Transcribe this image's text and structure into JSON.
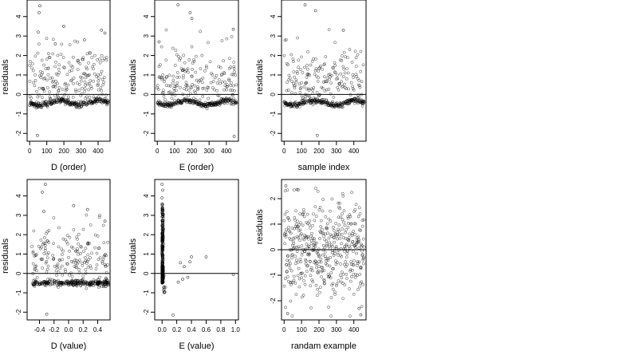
{
  "chart_data": [
    {
      "type": "scatter",
      "xlabel": "D (order)",
      "ylabel": "residuals",
      "xlim": [
        -15,
        470
      ],
      "ylim": [
        -2.4,
        4.85
      ],
      "xticks": [
        0,
        100,
        200,
        300,
        400
      ],
      "yticks": [
        -2,
        -1,
        0,
        1,
        2,
        3,
        4
      ],
      "hline": 0,
      "pattern": "order",
      "points": [
        {
          "x": 0,
          "y": -0.55
        },
        {
          "x": 60,
          "y": 4.55
        },
        {
          "x": 55,
          "y": 4.2
        },
        {
          "x": 50,
          "y": 3.2
        },
        {
          "x": 45,
          "y": -2.1
        },
        {
          "x": 200,
          "y": 3.5
        },
        {
          "x": 420,
          "y": 3.3
        },
        {
          "x": 440,
          "y": 3.15
        },
        {
          "x": 150,
          "y": 2.6
        },
        {
          "x": 320,
          "y": 2.8
        }
      ]
    },
    {
      "type": "scatter",
      "xlabel": "E (order)",
      "ylabel": "residuals",
      "xlim": [
        -15,
        470
      ],
      "ylim": [
        -2.4,
        4.85
      ],
      "xticks": [
        0,
        100,
        200,
        300,
        400
      ],
      "yticks": [
        -2,
        -1,
        0,
        1,
        2,
        3,
        4
      ],
      "hline": 0,
      "pattern": "order",
      "points": [
        {
          "x": 120,
          "y": 4.6
        },
        {
          "x": 190,
          "y": 4.2
        },
        {
          "x": 200,
          "y": 3.9
        },
        {
          "x": 440,
          "y": 3.35
        },
        {
          "x": 445,
          "y": -2.15
        },
        {
          "x": 10,
          "y": 2.7
        }
      ]
    },
    {
      "type": "scatter",
      "xlabel": "sample index",
      "ylabel": "residuals",
      "xlim": [
        -15,
        470
      ],
      "ylim": [
        -2.4,
        4.85
      ],
      "xticks": [
        0,
        100,
        200,
        300,
        400
      ],
      "yticks": [
        -2,
        -1,
        0,
        1,
        2,
        3,
        4
      ],
      "hline": 0,
      "pattern": "order",
      "points": [
        {
          "x": 120,
          "y": 4.6
        },
        {
          "x": 180,
          "y": 4.3
        },
        {
          "x": 190,
          "y": -2.1
        },
        {
          "x": 340,
          "y": 3.3
        }
      ]
    },
    {
      "type": "scatter",
      "xlabel": "D (value)",
      "ylabel": "residuals",
      "xlim": [
        -0.57,
        0.57
      ],
      "ylim": [
        -2.4,
        4.85
      ],
      "xticks": [
        -0.4,
        -0.2,
        0.0,
        0.2,
        0.4
      ],
      "xtick_labels": [
        "-0.4",
        "-0.2",
        "0.0",
        "0.2",
        "0.4"
      ],
      "yticks": [
        -2,
        -1,
        0,
        1,
        2,
        3,
        4
      ],
      "hline": 0,
      "pattern": "dvalue",
      "points": [
        {
          "x": -0.32,
          "y": 4.6
        },
        {
          "x": -0.36,
          "y": 4.2
        },
        {
          "x": -0.34,
          "y": 3.2
        },
        {
          "x": -0.3,
          "y": -2.1
        },
        {
          "x": 0.07,
          "y": 3.5
        },
        {
          "x": 0.26,
          "y": 3.3
        },
        {
          "x": 0.5,
          "y": 2.7
        }
      ]
    },
    {
      "type": "scatter",
      "xlabel": "E (value)",
      "ylabel": "residuals",
      "xlim": [
        -0.1,
        1.04
      ],
      "ylim": [
        -2.4,
        4.85
      ],
      "xticks": [
        0.0,
        0.2,
        0.4,
        0.6,
        0.8,
        1.0
      ],
      "xtick_labels": [
        "0.0",
        "0.2",
        "0.4",
        "0.6",
        "0.8",
        "1.0"
      ],
      "yticks": [
        -2,
        -1,
        0,
        1,
        2,
        3,
        4
      ],
      "hline": 0,
      "pattern": "evalue",
      "points": [
        {
          "x": 0.0,
          "y": 4.6
        },
        {
          "x": 0.01,
          "y": 4.3
        },
        {
          "x": 0.0,
          "y": 3.9
        },
        {
          "x": 0.15,
          "y": -2.15
        },
        {
          "x": 0.25,
          "y": 0.55
        },
        {
          "x": 0.3,
          "y": 0.35
        },
        {
          "x": 0.4,
          "y": 0.85
        },
        {
          "x": 0.38,
          "y": 0.6
        },
        {
          "x": 0.6,
          "y": 0.85
        },
        {
          "x": 0.22,
          "y": -0.45
        },
        {
          "x": 0.28,
          "y": -0.3
        },
        {
          "x": 0.35,
          "y": -0.2
        },
        {
          "x": 0.97,
          "y": -0.05
        }
      ]
    },
    {
      "type": "scatter",
      "xlabel": "randam example",
      "ylabel": "residuals",
      "xlim": [
        -15,
        470
      ],
      "ylim": [
        -2.75,
        2.75
      ],
      "xticks": [
        0,
        100,
        200,
        300,
        400
      ],
      "yticks": [
        -2,
        -1,
        0,
        1,
        2
      ],
      "hline": 0,
      "pattern": "random",
      "points": [
        {
          "x": 10,
          "y": 2.5
        },
        {
          "x": 80,
          "y": 2.35
        },
        {
          "x": 440,
          "y": -2.55
        },
        {
          "x": 20,
          "y": -2.5
        },
        {
          "x": 430,
          "y": -2.3
        }
      ]
    }
  ]
}
